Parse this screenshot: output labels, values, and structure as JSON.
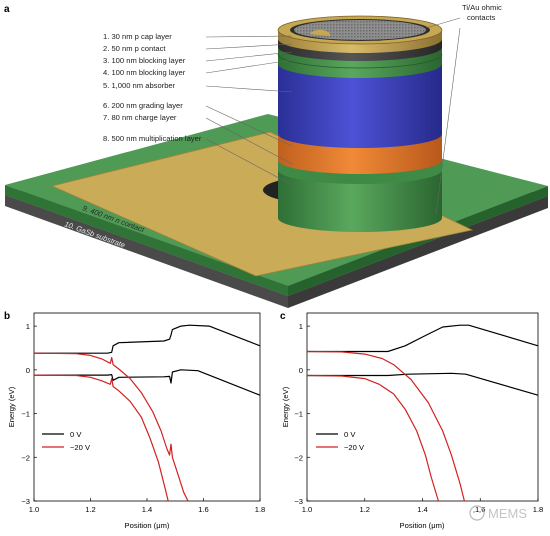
{
  "figure": {
    "panel_a_letter": "a",
    "panel_b_letter": "b",
    "panel_c_letter": "c",
    "device_labels": [
      "1. 30 nm p cap layer",
      "2. 50 nm p contact",
      "3. 100 nm blocking layer",
      "4. 100 nm blocking layer",
      "5. 1,000 nm absorber",
      "6. 200 nm grading layer",
      "7. 80 nm charge layer",
      "8. 500 nm multiplication layer"
    ],
    "contacts_label_line1": "Ti/Au ohmic",
    "contacts_label_line2": "contacts",
    "n_contact_label": "9. 400 nm n contact",
    "substrate_label": "10. GaSb substrate",
    "watermark": "MEMS",
    "colors": {
      "green": "#3f8f45",
      "dark_green": "#2d6f36",
      "blue": "#3a3fbf",
      "orange": "#e07a2c",
      "gold": "#c8a955",
      "substrate": "#5a5a5a",
      "line_0v": "#000000",
      "line_20v": "#d32020"
    }
  },
  "chart_data": [
    {
      "panel": "b",
      "type": "line",
      "xlabel": "Position (μm)",
      "ylabel": "Energy (eV)",
      "xlim": [
        1.0,
        1.8
      ],
      "ylim": [
        -3,
        1.3
      ],
      "xticks": [
        "1.0",
        "1.2",
        "1.4",
        "1.6",
        "1.8"
      ],
      "yticks": [
        "1",
        "0",
        "−1",
        "−2",
        "−3"
      ],
      "legend": [
        "0 V",
        "−20 V"
      ],
      "legend_position": "left",
      "series": [
        {
          "name": "0 V",
          "band": "conduction",
          "color": "#000000",
          "x": [
            1.0,
            1.26,
            1.275,
            1.28,
            1.3,
            1.46,
            1.48,
            1.485,
            1.49,
            1.52,
            1.55,
            1.62,
            1.8
          ],
          "y": [
            0.38,
            0.38,
            0.4,
            0.55,
            0.62,
            0.66,
            0.7,
            0.8,
            0.92,
            1.0,
            1.02,
            1.0,
            0.55
          ]
        },
        {
          "name": "0 V",
          "band": "valence",
          "color": "#000000",
          "x": [
            1.0,
            1.26,
            1.275,
            1.28,
            1.3,
            1.46,
            1.48,
            1.485,
            1.49,
            1.52,
            1.58,
            1.8
          ],
          "y": [
            -0.12,
            -0.12,
            -0.11,
            -0.24,
            -0.17,
            -0.16,
            -0.15,
            -0.3,
            -0.05,
            0.0,
            -0.02,
            -0.58
          ]
        },
        {
          "name": "−20 V",
          "band": "conduction",
          "color": "#d32020",
          "x": [
            1.0,
            1.15,
            1.2,
            1.24,
            1.27,
            1.275,
            1.28,
            1.3,
            1.34,
            1.38,
            1.42,
            1.45,
            1.47,
            1.48,
            1.485,
            1.49,
            1.51,
            1.53,
            1.545
          ],
          "y": [
            0.38,
            0.37,
            0.33,
            0.25,
            0.15,
            0.28,
            0.12,
            0.02,
            -0.2,
            -0.52,
            -0.95,
            -1.4,
            -1.8,
            -1.95,
            -1.7,
            -2.0,
            -2.4,
            -2.8,
            -3.0
          ]
        },
        {
          "name": "−20 V",
          "band": "valence",
          "color": "#d32020",
          "x": [
            1.0,
            1.15,
            1.2,
            1.24,
            1.27,
            1.275,
            1.28,
            1.3,
            1.34,
            1.38,
            1.41,
            1.44,
            1.46,
            1.475
          ],
          "y": [
            -0.12,
            -0.13,
            -0.17,
            -0.25,
            -0.33,
            -0.2,
            -0.38,
            -0.48,
            -0.72,
            -1.08,
            -1.55,
            -2.1,
            -2.6,
            -3.0
          ]
        }
      ]
    },
    {
      "panel": "c",
      "type": "line",
      "xlabel": "Position (μm)",
      "ylabel": "Energy (eV)",
      "xlim": [
        1.0,
        1.8
      ],
      "ylim": [
        -3,
        1.3
      ],
      "xticks": [
        "1.0",
        "1.2",
        "1.4",
        "1.6",
        "1.8"
      ],
      "yticks": [
        "1",
        "0",
        "−1",
        "−2",
        "−3"
      ],
      "legend": [
        "0 V",
        "−20 V"
      ],
      "legend_position": "left",
      "series": [
        {
          "name": "0 V",
          "band": "conduction",
          "color": "#000000",
          "x": [
            1.0,
            1.28,
            1.34,
            1.4,
            1.47,
            1.53,
            1.56,
            1.8
          ],
          "y": [
            0.42,
            0.42,
            0.55,
            0.75,
            0.98,
            1.02,
            1.02,
            0.55
          ]
        },
        {
          "name": "0 V",
          "band": "valence",
          "color": "#000000",
          "x": [
            1.0,
            1.28,
            1.35,
            1.5,
            1.55,
            1.8
          ],
          "y": [
            -0.13,
            -0.13,
            -0.1,
            -0.08,
            -0.1,
            -0.58
          ]
        },
        {
          "name": "−20 V",
          "band": "conduction",
          "color": "#d32020",
          "x": [
            1.0,
            1.12,
            1.2,
            1.26,
            1.3,
            1.36,
            1.42,
            1.47,
            1.5,
            1.53,
            1.545
          ],
          "y": [
            0.42,
            0.41,
            0.36,
            0.26,
            0.12,
            -0.22,
            -0.75,
            -1.4,
            -1.95,
            -2.6,
            -3.0
          ]
        },
        {
          "name": "−20 V",
          "band": "valence",
          "color": "#d32020",
          "x": [
            1.0,
            1.12,
            1.2,
            1.25,
            1.3,
            1.34,
            1.38,
            1.41,
            1.43,
            1.455
          ],
          "y": [
            -0.13,
            -0.14,
            -0.2,
            -0.33,
            -0.55,
            -0.9,
            -1.4,
            -1.95,
            -2.45,
            -3.0
          ]
        }
      ]
    }
  ]
}
